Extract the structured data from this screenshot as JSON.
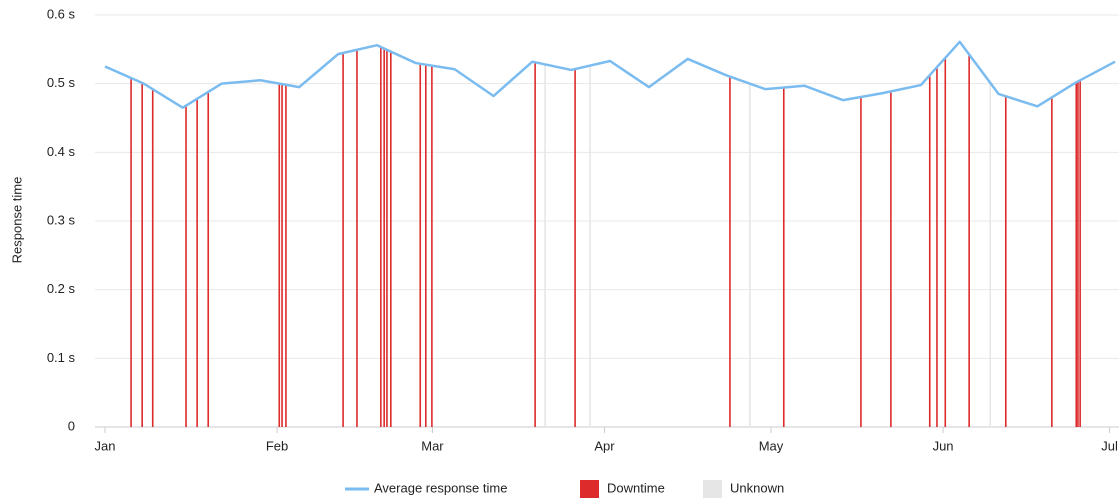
{
  "chart_data": {
    "type": "line",
    "y_label": "Response time",
    "xlim": [
      -1.8,
      182.7
    ],
    "xticks": [
      {
        "value": 0,
        "label": "Jan"
      },
      {
        "value": 31,
        "label": "Feb"
      },
      {
        "value": 59,
        "label": "Mar"
      },
      {
        "value": 90,
        "label": "Apr"
      },
      {
        "value": 120,
        "label": "May"
      },
      {
        "value": 151,
        "label": "Jun"
      },
      {
        "value": 181,
        "label": "Jul"
      }
    ],
    "ylim": [
      0,
      0.6
    ],
    "yticks": [
      0,
      {
        "value": 0.1,
        "label": "0.1 s"
      },
      {
        "value": 0.2,
        "label": "0.2 s"
      },
      {
        "value": 0.3,
        "label": "0.3 s"
      },
      {
        "value": 0.4,
        "label": "0.4 s"
      },
      {
        "value": 0.5,
        "label": "0.5 s"
      },
      {
        "value": 0.6,
        "label": "0.6 s"
      }
    ],
    "grid": true,
    "series": [
      {
        "name": "Average response time",
        "color": "#7bbcf0",
        "x": [
          0,
          7,
          14,
          21,
          28,
          35,
          42,
          49,
          56,
          63,
          70,
          77,
          84,
          91,
          98,
          105,
          112,
          119,
          126,
          133,
          140,
          147,
          154,
          161,
          168,
          175,
          182
        ],
        "values": [
          0.525,
          0.5,
          0.465,
          0.5,
          0.505,
          0.495,
          0.543,
          0.556,
          0.53,
          0.521,
          0.482,
          0.532,
          0.52,
          0.533,
          0.495,
          0.536,
          0.512,
          0.492,
          0.497,
          0.476,
          0.486,
          0.498,
          0.561,
          0.485,
          0.467,
          0.502,
          0.532
        ]
      },
      {
        "name": "Downtime",
        "color": "#dd2b2b",
        "x": [
          4.7,
          6.7,
          8.6,
          14.6,
          16.6,
          18.6,
          31.4,
          31.9,
          32.6,
          42.9,
          45.4,
          49.7,
          50.3,
          50.8,
          51.5,
          56.8,
          57.8,
          58.9,
          77.5,
          84.7,
          112.6,
          122.3,
          136.2,
          141.6,
          148.6,
          149.9,
          151.4,
          155.7,
          162.3,
          170.6,
          175,
          175.3,
          175.7
        ]
      },
      {
        "name": "Unknown",
        "color": "#e6e6e6",
        "x": [
          79.3,
          87.4,
          116.2,
          159.5
        ]
      }
    ]
  }
}
